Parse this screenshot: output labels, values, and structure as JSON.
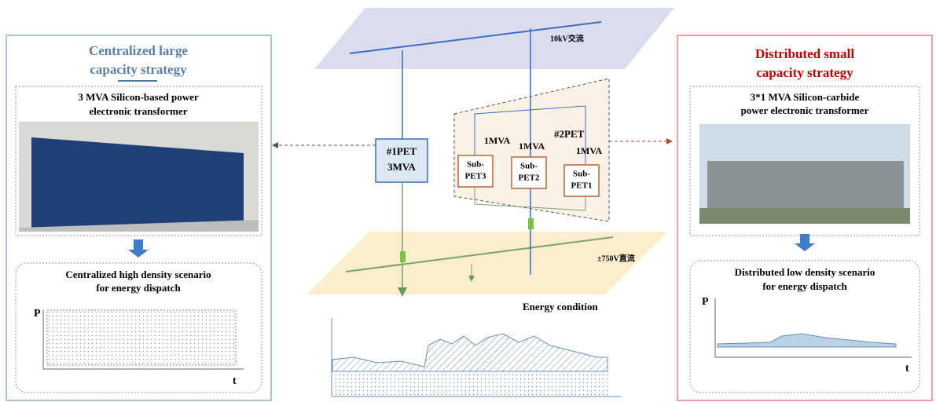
{
  "left": {
    "title": [
      "Centralized large",
      "capacity  strategy"
    ],
    "device": [
      "3 MVA Silicon-based power",
      "electronic transformer"
    ],
    "scenario": [
      "Centralized high density scenario",
      "for energy dispatch"
    ],
    "y_axis": "P",
    "x_axis": "t"
  },
  "right": {
    "title": [
      "Distributed small",
      "capacity  strategy"
    ],
    "device": [
      "3*1 MVA Silicon-carbide",
      "power electronic transformer"
    ],
    "scenario": [
      "Distributed low density scenario",
      "for energy dispatch"
    ],
    "y_axis": "P",
    "x_axis": "t"
  },
  "center": {
    "ac_bus": "10kV交流",
    "dc_bus": "±750V直流",
    "pet1": [
      "#1PET",
      "3MVA"
    ],
    "pet2": "#2PET",
    "subs": [
      {
        "rating": "1MVA",
        "name": [
          "Sub-",
          "PET3"
        ]
      },
      {
        "rating": "1MVA",
        "name": [
          "Sub-",
          "PET2"
        ]
      },
      {
        "rating": "1MVA",
        "name": [
          "Sub-",
          "PET1"
        ]
      }
    ],
    "energy": "Energy condition"
  }
}
